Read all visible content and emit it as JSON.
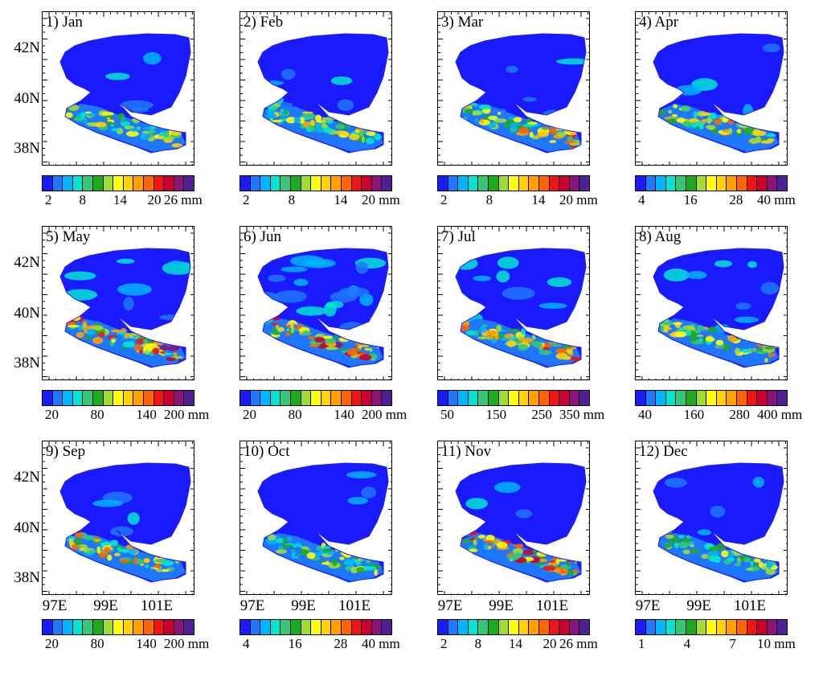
{
  "colors": [
    "#1a1aff",
    "#1e78ff",
    "#00b4ff",
    "#00e6d2",
    "#32c878",
    "#1eaa1e",
    "#a0dc32",
    "#ffff00",
    "#ffd200",
    "#ffa000",
    "#ff6400",
    "#f01414",
    "#c80032",
    "#8c1478",
    "#501e96"
  ],
  "axes": {
    "lat_labels": [
      "42N",
      "40N",
      "38N"
    ],
    "lon_labels": [
      "97E",
      "99E",
      "101E"
    ]
  },
  "panels": [
    {
      "title": "1) Jan",
      "cbar_labels": [
        "2",
        "8",
        "14",
        "20",
        "26 mm"
      ],
      "intensity": 0.55,
      "wet": 0.1
    },
    {
      "title": "2) Feb",
      "cbar_labels": [
        "2",
        "8",
        "14",
        "20 mm"
      ],
      "intensity": 0.6,
      "wet": 0.15
    },
    {
      "title": "3) Mar",
      "cbar_labels": [
        "2",
        "8",
        "14",
        "20 mm"
      ],
      "intensity": 0.65,
      "wet": 0.1
    },
    {
      "title": "4) Apr",
      "cbar_labels": [
        "4",
        "16",
        "28",
        "40 mm"
      ],
      "intensity": 0.65,
      "wet": 0.12
    },
    {
      "title": "5) May",
      "cbar_labels": [
        "20",
        "80",
        "140",
        "200 mm"
      ],
      "intensity": 0.8,
      "wet": 0.2
    },
    {
      "title": "6) Jun",
      "cbar_labels": [
        "20",
        "80",
        "140",
        "200 mm"
      ],
      "intensity": 0.85,
      "wet": 0.5
    },
    {
      "title": "7) Jul",
      "cbar_labels": [
        "50",
        "150",
        "250",
        "350 mm"
      ],
      "intensity": 0.75,
      "wet": 0.2
    },
    {
      "title": "8) Aug",
      "cbar_labels": [
        "40",
        "160",
        "280",
        "400 mm"
      ],
      "intensity": 0.6,
      "wet": 0.2
    },
    {
      "title": "9) Sep",
      "cbar_labels": [
        "20",
        "80",
        "140",
        "200 mm"
      ],
      "intensity": 0.75,
      "wet": 0.1
    },
    {
      "title": "10) Oct",
      "cbar_labels": [
        "4",
        "16",
        "28",
        "40 mm"
      ],
      "intensity": 0.45,
      "wet": 0.1
    },
    {
      "title": "11) Nov",
      "cbar_labels": [
        "2",
        "8",
        "14",
        "20",
        "26 mm"
      ],
      "intensity": 0.8,
      "wet": 0.1
    },
    {
      "title": "12) Dec",
      "cbar_labels": [
        "1",
        "4",
        "7",
        "10 mm"
      ],
      "intensity": 0.45,
      "wet": 0.1
    }
  ]
}
